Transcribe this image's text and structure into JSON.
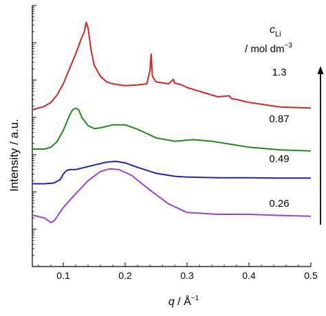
{
  "chart_data": {
    "type": "line",
    "xlabel_italic": "q",
    "xlabel_rest": " / Å",
    "xlabel_sup": "−1",
    "ylabel": "Intensity / a.u.",
    "xlim": [
      0.05,
      0.5
    ],
    "xticks": [
      0.1,
      0.2,
      0.3,
      0.4,
      0.5
    ],
    "xtick_labels": [
      "0.1",
      "0.2",
      "0.3",
      "0.4",
      "0.5"
    ],
    "y_scale": "log",
    "legend_title_italic": "c",
    "legend_title_sub": "Li",
    "legend_title_unit": "/ mol dm",
    "legend_title_unit_sup": "−3",
    "arrow": "upward",
    "series": [
      {
        "name": "1.3",
        "color": "#e02020",
        "x": [
          0.05,
          0.06,
          0.07,
          0.08,
          0.09,
          0.1,
          0.11,
          0.12,
          0.13,
          0.134,
          0.137,
          0.14,
          0.145,
          0.15,
          0.16,
          0.17,
          0.18,
          0.2,
          0.22,
          0.235,
          0.24,
          0.242,
          0.244,
          0.25,
          0.27,
          0.278,
          0.28,
          0.29,
          0.3,
          0.35,
          0.368,
          0.372,
          0.38,
          0.4,
          0.45,
          0.5
        ],
        "y": [
          2.2,
          2.25,
          2.3,
          2.4,
          2.6,
          2.9,
          3.3,
          3.7,
          4.15,
          4.3,
          4.55,
          4.4,
          3.8,
          3.4,
          3.1,
          2.95,
          2.9,
          2.85,
          2.87,
          2.9,
          3.25,
          3.7,
          3.1,
          2.95,
          2.9,
          3.02,
          2.92,
          2.88,
          2.8,
          2.55,
          2.58,
          2.5,
          2.48,
          2.4,
          2.28,
          2.25
        ]
      },
      {
        "name": "0.87",
        "color": "#1e8a1e",
        "x": [
          0.05,
          0.07,
          0.08,
          0.09,
          0.1,
          0.11,
          0.115,
          0.12,
          0.125,
          0.13,
          0.14,
          0.15,
          0.16,
          0.18,
          0.2,
          0.22,
          0.25,
          0.28,
          0.31,
          0.34,
          0.37,
          0.4,
          0.45,
          0.5
        ],
        "y": [
          1.15,
          1.15,
          1.2,
          1.35,
          1.65,
          2.05,
          2.2,
          2.25,
          2.2,
          2.0,
          1.78,
          1.7,
          1.72,
          1.8,
          1.8,
          1.68,
          1.45,
          1.36,
          1.4,
          1.36,
          1.28,
          1.2,
          1.13,
          1.1
        ]
      },
      {
        "name": "0.49",
        "color": "#2020c0",
        "x": [
          0.05,
          0.07,
          0.085,
          0.095,
          0.1,
          0.105,
          0.11,
          0.12,
          0.13,
          0.15,
          0.17,
          0.185,
          0.2,
          0.22,
          0.25,
          0.28,
          0.3,
          0.35,
          0.4,
          0.45,
          0.5
        ],
        "y": [
          0.22,
          0.22,
          0.24,
          0.33,
          0.48,
          0.57,
          0.6,
          0.6,
          0.64,
          0.72,
          0.8,
          0.82,
          0.78,
          0.66,
          0.5,
          0.42,
          0.4,
          0.38,
          0.38,
          0.37,
          0.37
        ]
      },
      {
        "name": "0.26",
        "color": "#9b40e0",
        "x": [
          0.05,
          0.06,
          0.07,
          0.075,
          0.08,
          0.085,
          0.09,
          0.1,
          0.12,
          0.14,
          0.16,
          0.175,
          0.19,
          0.21,
          0.24,
          0.27,
          0.3,
          0.35,
          0.4,
          0.45,
          0.5
        ],
        "y": [
          -0.62,
          -0.66,
          -0.7,
          -0.76,
          -0.82,
          -0.78,
          -0.66,
          -0.42,
          -0.05,
          0.3,
          0.55,
          0.62,
          0.6,
          0.45,
          0.05,
          -0.32,
          -0.55,
          -0.6,
          -0.6,
          -0.63,
          -0.65
        ]
      }
    ]
  }
}
